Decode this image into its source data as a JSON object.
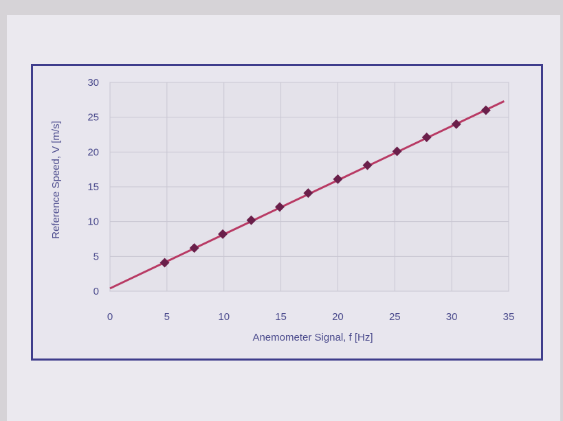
{
  "chart_data": {
    "type": "scatter",
    "title": "",
    "xlabel": "Anemometer Signal, f [Hz]",
    "ylabel": "Reference Speed, V [m/s]",
    "xlim": [
      0,
      35
    ],
    "ylim": [
      0,
      30
    ],
    "x_ticks": [
      0,
      5,
      10,
      15,
      20,
      25,
      30,
      35
    ],
    "y_ticks": [
      0,
      5,
      10,
      15,
      20,
      25,
      30
    ],
    "grid": true,
    "legend": "none",
    "series": [
      {
        "marker": "diamond",
        "x": [
          4.8,
          7.4,
          9.9,
          12.4,
          14.9,
          17.4,
          20.0,
          22.6,
          25.2,
          27.8,
          30.4,
          33.0
        ],
        "y": [
          4.1,
          6.2,
          8.2,
          10.2,
          12.1,
          14.1,
          16.1,
          18.1,
          20.1,
          22.1,
          24.0,
          26.0
        ]
      }
    ],
    "fit_line": {
      "x": [
        0,
        34.6
      ],
      "y": [
        0.4,
        27.3
      ]
    }
  },
  "colors": {
    "marker": "#6a1f4a",
    "line": "#b83a64",
    "axis_text": "#4a4a8c",
    "frame": "#3f3d8c",
    "plot_area": "#e4e2ea",
    "grid": "#c9c6d2"
  }
}
